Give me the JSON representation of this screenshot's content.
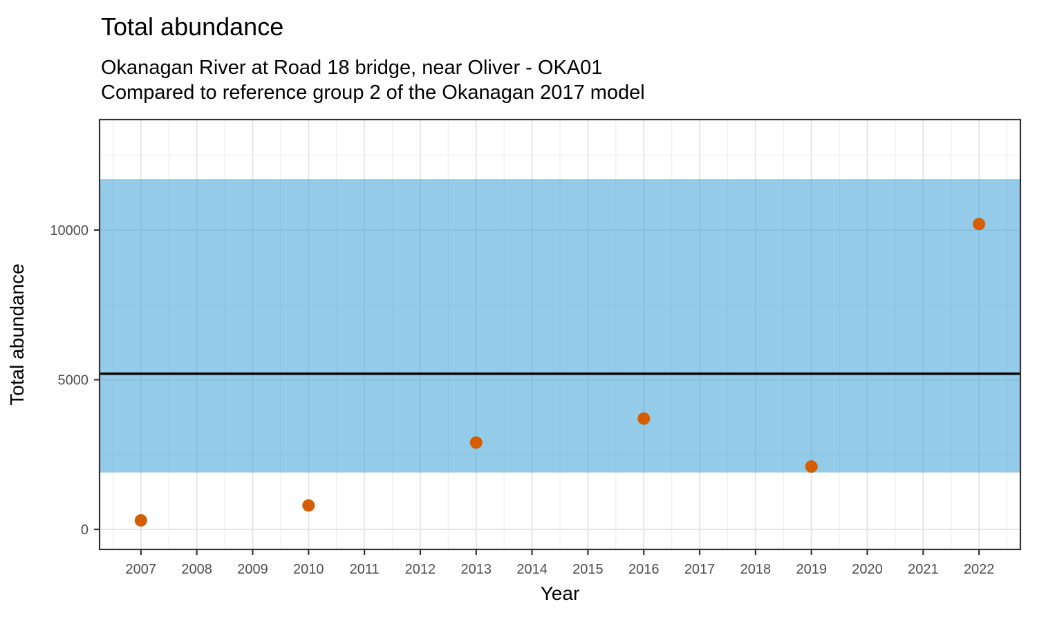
{
  "header": {
    "title": "Total abundance",
    "subtitle1": "Okanagan River at Road 18 bridge, near Oliver - OKA01",
    "subtitle2": "Compared to reference group 2 of the Okanagan 2017 model"
  },
  "chart_data": {
    "type": "scatter",
    "title": "Total abundance",
    "subtitle": [
      "Okanagan River at Road 18 bridge, near Oliver - OKA01",
      "Compared to reference group 2 of the Okanagan 2017 model"
    ],
    "xlabel": "Year",
    "ylabel": "Total abundance",
    "x_ticks": [
      2007,
      2008,
      2009,
      2010,
      2011,
      2012,
      2013,
      2014,
      2015,
      2016,
      2017,
      2018,
      2019,
      2020,
      2021,
      2022
    ],
    "x_minor_ticks": [
      2006.5,
      2007.5,
      2008.5,
      2009.5,
      2010.5,
      2011.5,
      2012.5,
      2013.5,
      2014.5,
      2015.5,
      2016.5,
      2017.5,
      2018.5,
      2019.5,
      2020.5,
      2021.5,
      2022.5
    ],
    "y_ticks": [
      0,
      5000,
      10000
    ],
    "y_minor_ticks": [
      2500,
      7500,
      12500
    ],
    "xlim": [
      2006.26,
      2022.74
    ],
    "ylim": [
      -670,
      13690
    ],
    "grid": true,
    "legend": "none",
    "points": {
      "x": [
        2007,
        2010,
        2013,
        2016,
        2019,
        2022
      ],
      "y": [
        300,
        800,
        2900,
        3700,
        2100,
        10200
      ]
    },
    "reference_band": {
      "ymin": 1900,
      "ymax": 11700,
      "color": "#3CA0D7",
      "opacity": 0.55
    },
    "reference_line": {
      "y": 5200,
      "color": "#000000"
    },
    "colors": {
      "point": "#D55E00",
      "grid_major": "#E6E6E6",
      "grid_minor": "#F0F0F0",
      "panel_border": "#333333",
      "tick_mark": "#333333",
      "tick_label": "#4D4D4D",
      "axis_title": "#000000"
    }
  }
}
